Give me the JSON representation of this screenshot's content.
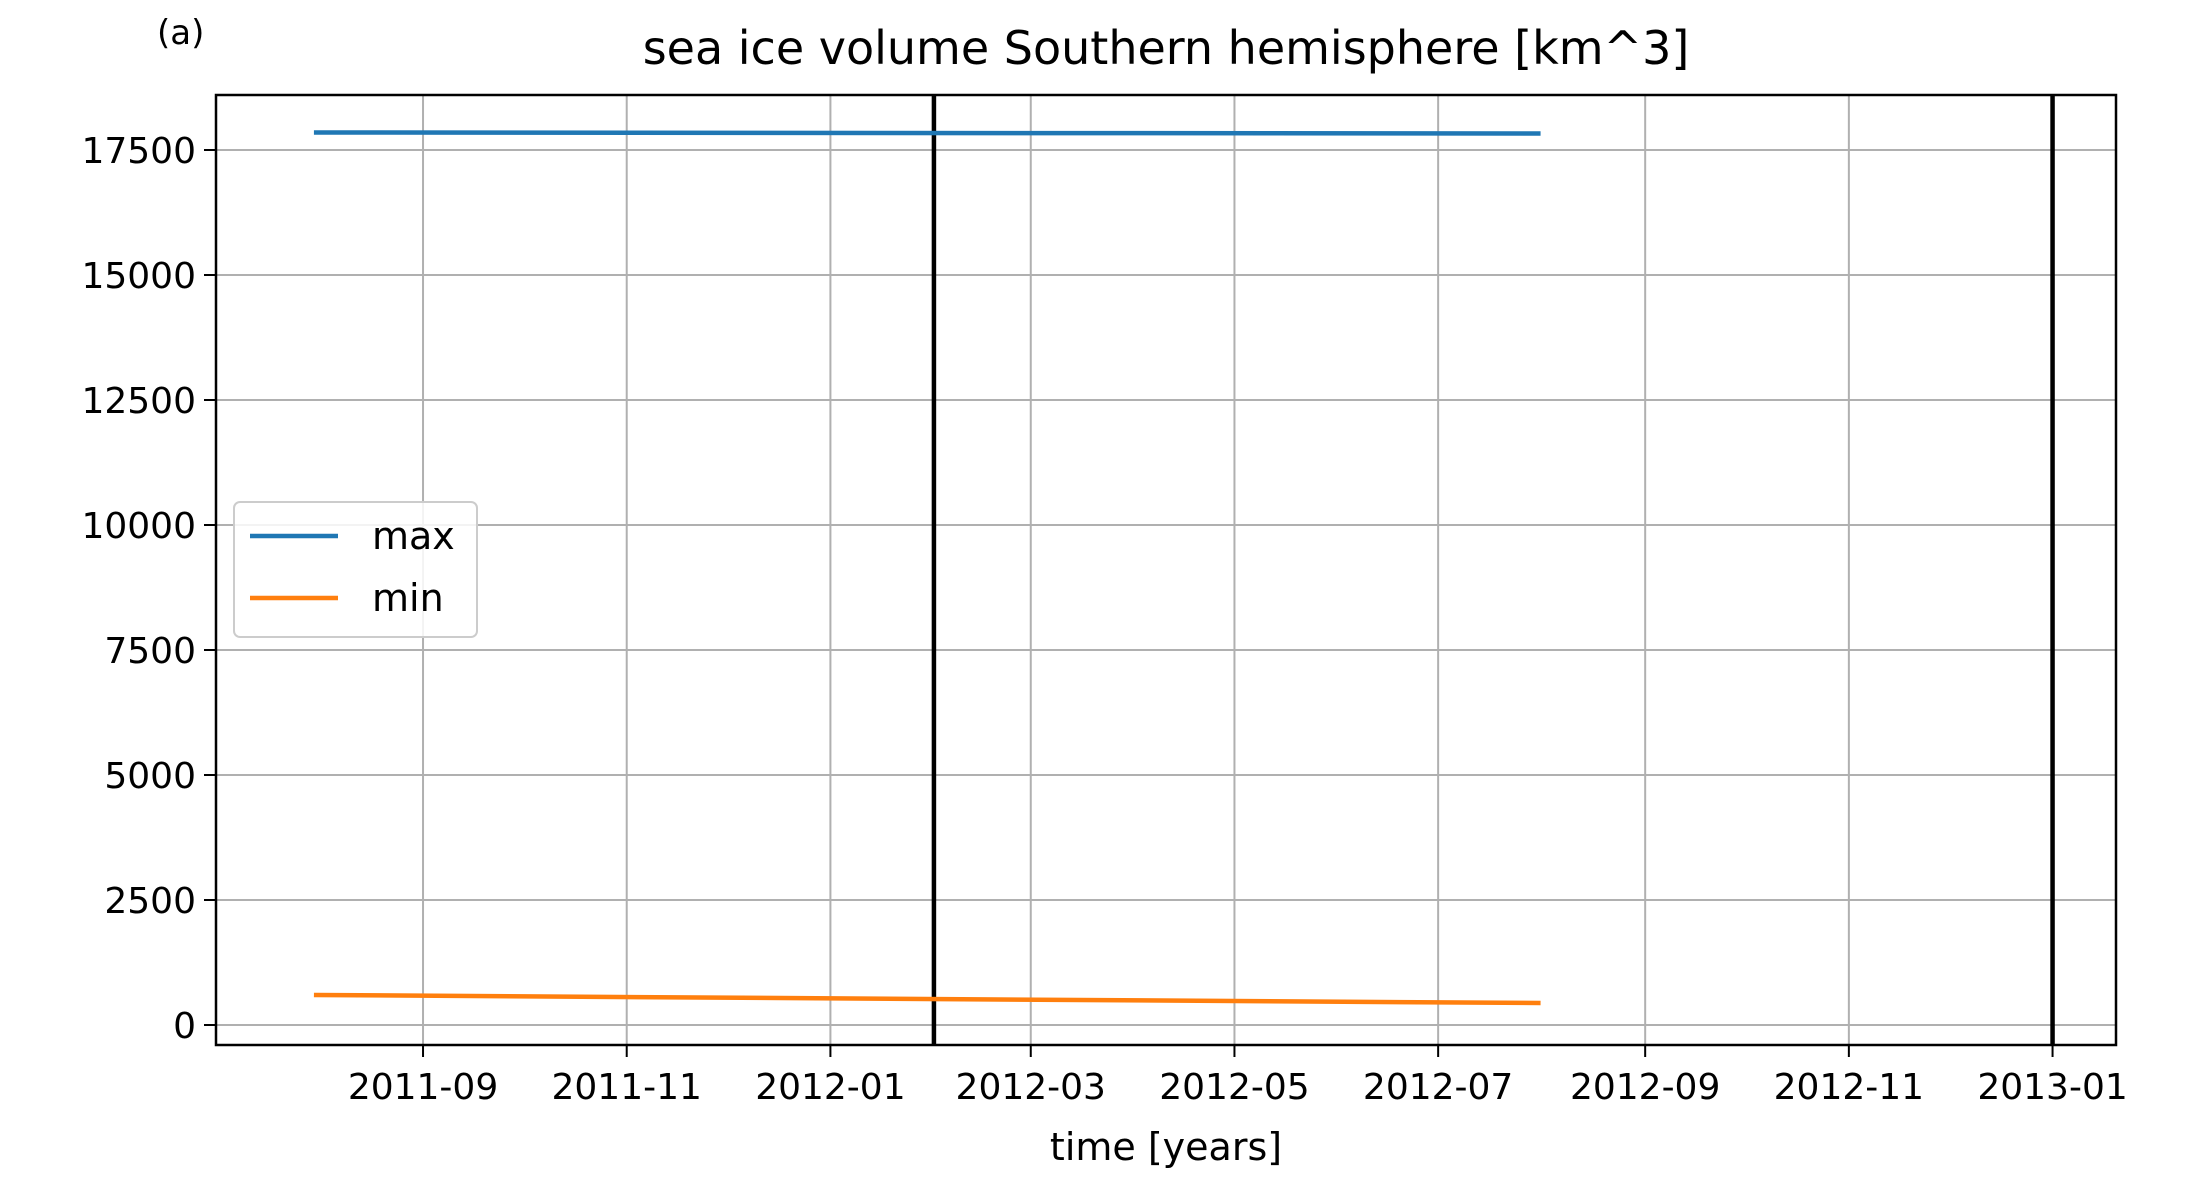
{
  "panel_label": "(a)",
  "chart_data": {
    "type": "line",
    "title": "sea ice volume Southern hemisphere [km^3]",
    "xlabel": "time [years]",
    "ylabel": "",
    "x_type": "date",
    "xlim": [
      "2011-07-01",
      "2013-01-20"
    ],
    "ylim": [
      -400,
      18600
    ],
    "x_ticks": [
      "2011-09-01",
      "2011-11-01",
      "2012-01-01",
      "2012-03-01",
      "2012-05-01",
      "2012-07-01",
      "2012-09-01",
      "2012-11-01",
      "2013-01-01"
    ],
    "x_tick_labels": [
      "2011-09",
      "2011-11",
      "2012-01",
      "2012-03",
      "2012-05",
      "2012-07",
      "2012-09",
      "2012-11",
      "2013-01"
    ],
    "y_ticks": [
      0,
      2500,
      5000,
      7500,
      10000,
      12500,
      15000,
      17500
    ],
    "y_tick_labels": [
      "0",
      "2500",
      "5000",
      "7500",
      "10000",
      "12500",
      "15000",
      "17500"
    ],
    "grid": true,
    "legend_position": "center-left",
    "series": [
      {
        "name": "max",
        "color": "#1f77b4",
        "x": [
          "2011-07-31",
          "2012-07-31"
        ],
        "y": [
          17850,
          17830
        ]
      },
      {
        "name": "min",
        "color": "#ff7f0e",
        "x": [
          "2011-07-31",
          "2012-07-31"
        ],
        "y": [
          600,
          440
        ]
      }
    ],
    "vertical_lines": [
      {
        "x": "2012-02-01",
        "color": "#000000"
      },
      {
        "x": "2013-01-01",
        "color": "#000000"
      }
    ]
  }
}
